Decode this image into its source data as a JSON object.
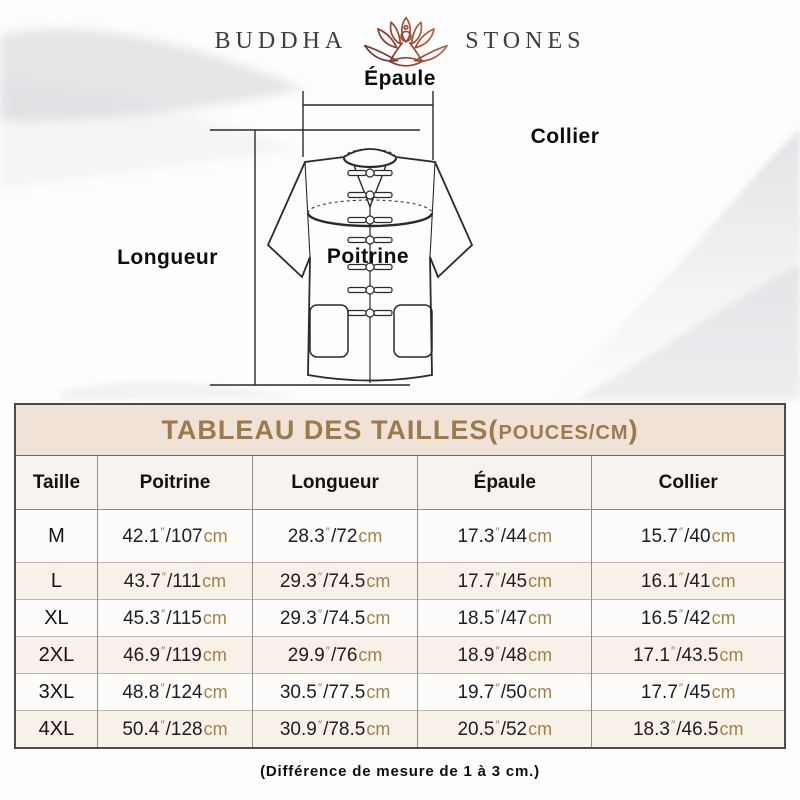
{
  "brand": {
    "word_left": "BUDDHA",
    "word_right": "STONES",
    "icon": "lotus-meditation-icon"
  },
  "diagram": {
    "shoulder_label": "Épaule",
    "collar_label": "Collier",
    "length_label": "Longueur",
    "chest_label": "Poitrine"
  },
  "table": {
    "title_main": "TABLEAU DES TAILLES(",
    "title_unit": "POUCES/CM",
    "title_close": ")"
  },
  "chart_data": {
    "type": "table",
    "title": "TABLEAU DES TAILLES(POUCES/CM)",
    "columns": [
      "Taille",
      "Poitrine",
      "Longueur",
      "Épaule",
      "Collier"
    ],
    "inch_mark": "″",
    "separator": "/",
    "cm_unit": "cm",
    "rows": [
      {
        "size": "M",
        "measurements": [
          {
            "in": "42.1",
            "cm": "107"
          },
          {
            "in": "28.3",
            "cm": "72"
          },
          {
            "in": "17.3",
            "cm": "44"
          },
          {
            "in": "15.7",
            "cm": "40"
          }
        ]
      },
      {
        "size": "L",
        "measurements": [
          {
            "in": "43.7",
            "cm": "111"
          },
          {
            "in": "29.3",
            "cm": "74.5"
          },
          {
            "in": "17.7",
            "cm": "45"
          },
          {
            "in": "16.1",
            "cm": "41"
          }
        ]
      },
      {
        "size": "XL",
        "measurements": [
          {
            "in": "45.3",
            "cm": "115"
          },
          {
            "in": "29.3",
            "cm": "74.5"
          },
          {
            "in": "18.5",
            "cm": "47"
          },
          {
            "in": "16.5",
            "cm": "42"
          }
        ]
      },
      {
        "size": "2XL",
        "measurements": [
          {
            "in": "46.9",
            "cm": "119"
          },
          {
            "in": "29.9",
            "cm": "76"
          },
          {
            "in": "18.9",
            "cm": "48"
          },
          {
            "in": "17.1",
            "cm": "43.5"
          }
        ]
      },
      {
        "size": "3XL",
        "measurements": [
          {
            "in": "48.8",
            "cm": "124"
          },
          {
            "in": "30.5",
            "cm": "77.5"
          },
          {
            "in": "19.7",
            "cm": "50"
          },
          {
            "in": "17.7",
            "cm": "45"
          }
        ]
      },
      {
        "size": "4XL",
        "measurements": [
          {
            "in": "50.4",
            "cm": "128"
          },
          {
            "in": "30.9",
            "cm": "78.5"
          },
          {
            "in": "20.5",
            "cm": "52"
          },
          {
            "in": "18.3",
            "cm": "46.5"
          }
        ]
      }
    ]
  },
  "footer": {
    "note": "(Différence de mesure de 1 à 3 cm.)"
  },
  "colors": {
    "accent_gold": "#9c7a49",
    "title_bar_bg": "#f1e2d8",
    "row_bg": "#fdfcfb",
    "row_alt_bg": "#f8f1ea",
    "unit_text": "#a18344",
    "border_dark": "#4a4a4a",
    "logo_gradient_start": "#c4713d",
    "logo_gradient_end": "#6e2a28"
  }
}
